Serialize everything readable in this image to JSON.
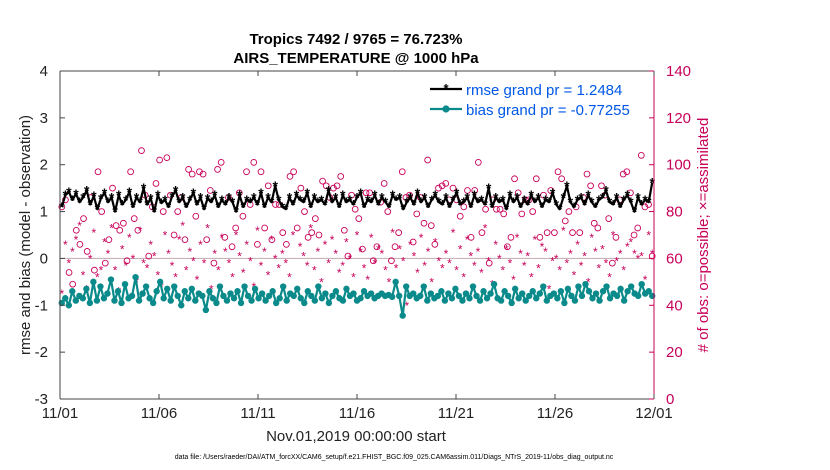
{
  "chart_data": {
    "type": "line",
    "title_line1": "Tropics 7492 / 9765 = 76.723%",
    "title_line2": "AIRS_TEMPERATURE @ 1000 hPa",
    "xlabel": "Nov.01,2019 00:00:00 start",
    "ylabel_left": "rmse and bias (model - observation)",
    "ylabel_right": "# of obs: o=possible; ×=assimilated",
    "footnote": "data file: /Users/raeder/DAI/ATM_forcXX/CAM6_setup/f.e21.FHIST_BGC.f09_025.CAM6assim.011/Diags_NTrS_2019-11/obs_diag_output.nc",
    "x_ticks": [
      "11/01",
      "11/06",
      "11/11",
      "11/16",
      "11/21",
      "11/26",
      "12/01"
    ],
    "x_range_days": [
      0,
      30
    ],
    "left_ticks": [
      "-3",
      "-2",
      "-1",
      "0",
      "1",
      "2",
      "3",
      "4"
    ],
    "ylim_left": [
      -3,
      4
    ],
    "right_ticks": [
      "0",
      "20",
      "40",
      "60",
      "80",
      "100",
      "120",
      "140"
    ],
    "ylim_right": [
      0,
      140
    ],
    "zero_line": 0,
    "colors": {
      "rmse": "#000000",
      "bias": "#0a8a8a",
      "obs": "#c8005a",
      "legend_text": "#0057e7",
      "zero_line": "#c8b4b4"
    },
    "series": [
      {
        "name": "rmse grand pr = 1.2484",
        "key": "rmse",
        "values": [
          1.1,
          1.35,
          1.42,
          1.25,
          1.38,
          1.2,
          1.3,
          1.45,
          1.15,
          1.33,
          1.05,
          1.28,
          1.4,
          1.2,
          1.3,
          1.0,
          1.35,
          1.15,
          1.25,
          1.42,
          1.1,
          1.3,
          1.2,
          1.5,
          1.15,
          1.28,
          1.0,
          1.35,
          1.18,
          1.25,
          1.1,
          1.32,
          1.45,
          1.2,
          1.3,
          1.1,
          1.25,
          1.4,
          1.15,
          1.3,
          1.05,
          1.28,
          1.2,
          1.35,
          1.1,
          1.25,
          1.15,
          1.3,
          1.2,
          1.0,
          1.35,
          1.1,
          1.25,
          1.2,
          1.3,
          1.15,
          1.4,
          1.1,
          1.3,
          1.2,
          1.55,
          1.25,
          1.1,
          1.05,
          1.3,
          1.15,
          1.35,
          1.25,
          1.2,
          1.4,
          1.1,
          1.3,
          1.2,
          1.25,
          1.15,
          1.45,
          1.2,
          1.3,
          1.1,
          1.35,
          1.2,
          1.25,
          1.15,
          1.3,
          1.4,
          1.1,
          1.25,
          1.2,
          1.35,
          1.15,
          1.3,
          1.2,
          1.1,
          1.35,
          1.25,
          1.3,
          1.05,
          1.2,
          1.3,
          1.15,
          1.4,
          1.2,
          1.3,
          1.1,
          1.25,
          1.35,
          1.2,
          1.15,
          1.3,
          1.1,
          1.25,
          1.4,
          1.15,
          1.2,
          1.3,
          1.1,
          1.35,
          1.2,
          1.25,
          1.15,
          1.5,
          1.1,
          1.3,
          1.2,
          1.25,
          1.05,
          1.35,
          1.2,
          1.3,
          1.1,
          1.25,
          1.15,
          1.35,
          1.2,
          1.3,
          1.1,
          1.25,
          1.2,
          1.4,
          1.15,
          1.05,
          1.3,
          1.55,
          1.2,
          1.1,
          1.25,
          1.3,
          1.15,
          1.35,
          1.2,
          1.1,
          1.25,
          1.3,
          1.45,
          1.2,
          1.15,
          1.3,
          1.1,
          1.25,
          1.35,
          1.2,
          1.0,
          1.3,
          1.15,
          1.25,
          1.2,
          1.62
        ]
      },
      {
        "name": "bias grand pr = -0.77255",
        "key": "bias",
        "values": [
          -0.95,
          -0.85,
          -1.0,
          -0.7,
          -0.9,
          -0.8,
          -0.85,
          -0.65,
          -0.95,
          -0.5,
          -0.9,
          -0.6,
          -0.85,
          -0.75,
          -0.45,
          -0.9,
          -0.7,
          -0.95,
          -0.55,
          -0.85,
          -0.8,
          -0.4,
          -0.9,
          -0.75,
          -0.6,
          -0.85,
          -0.95,
          -0.7,
          -0.5,
          -0.85,
          -0.65,
          -0.9,
          -0.6,
          -0.8,
          -1.0,
          -0.7,
          -0.85,
          -0.65,
          -0.9,
          -0.75,
          -0.8,
          -1.1,
          -0.7,
          -0.85,
          -0.95,
          -0.6,
          -0.8,
          -0.9,
          -0.75,
          -0.85,
          -0.7,
          -0.95,
          -0.6,
          -0.8,
          -0.9,
          -0.65,
          -0.85,
          -0.75,
          -0.9,
          -0.8,
          -0.7,
          -0.95,
          -0.85,
          -0.6,
          -0.9,
          -0.75,
          -0.8,
          -0.65,
          -0.85,
          -0.95,
          -0.7,
          -0.8,
          -0.9,
          -0.6,
          -0.85,
          -0.75,
          -0.95,
          -0.8,
          -0.7,
          -0.85,
          -0.9,
          -0.65,
          -0.8,
          -0.75,
          -0.9,
          -0.85,
          -0.7,
          -0.8,
          -0.75,
          -0.85,
          -0.8,
          -0.75,
          -0.8,
          -0.78,
          -0.82,
          -0.5,
          -0.8,
          -1.22,
          -0.6,
          -0.8,
          -0.75,
          -0.85,
          -0.8,
          -0.6,
          -0.9,
          -0.75,
          -0.85,
          -0.8,
          -0.7,
          -0.9,
          -0.75,
          -0.85,
          -0.65,
          -0.8,
          -0.9,
          -0.75,
          -0.85,
          -0.6,
          -0.8,
          -0.9,
          -0.7,
          -0.85,
          -0.75,
          -0.55,
          -0.85,
          -0.9,
          -0.7,
          -0.8,
          -0.95,
          -0.65,
          -0.85,
          -0.75,
          -0.9,
          -0.8,
          -0.7,
          -0.85,
          -0.75,
          -0.6,
          -0.9,
          -0.8,
          -0.75,
          -0.85,
          -0.7,
          -0.95,
          -0.65,
          -0.8,
          -0.9,
          -0.6,
          -0.8,
          -0.55,
          -0.7,
          -0.85,
          -0.75,
          -0.9,
          -0.7,
          -0.6,
          -0.85,
          -0.75,
          -0.8,
          -0.65,
          -0.9,
          -0.7,
          -0.6,
          -0.75,
          -0.8,
          -0.55,
          -0.75,
          -0.7,
          -0.8
        ]
      }
    ],
    "obs_possible": [
      82,
      85,
      54,
      49,
      72,
      66,
      77,
      63,
      86,
      55,
      97,
      80,
      58,
      68,
      90,
      74,
      72,
      75,
      59,
      97,
      77,
      72,
      106,
      87,
      61,
      82,
      92,
      102,
      80,
      103,
      87,
      70,
      80,
      86,
      68,
      98,
      96,
      78,
      97,
      96,
      68,
      89,
      58,
      98,
      101,
      69,
      86,
      65,
      73,
      88,
      78,
      97,
      83,
      101,
      66,
      97,
      73,
      91,
      68,
      83,
      83,
      71,
      66,
      95,
      97,
      73,
      90,
      80,
      69,
      71,
      77,
      70,
      93,
      91,
      86,
      90,
      91,
      95,
      72,
      61,
      87,
      81,
      77,
      64,
      88,
      88,
      59,
      65,
      84,
      92,
      80,
      59,
      65,
      71,
      97,
      86,
      87,
      67,
      79,
      86,
      75,
      102,
      74,
      66,
      90,
      91,
      92,
      85,
      90,
      85,
      78,
      82,
      89,
      69,
      89,
      101,
      71,
      81,
      58,
      85,
      81,
      81,
      79,
      65,
      69,
      94,
      88,
      79,
      85,
      85,
      80,
      94,
      69,
      87,
      71,
      89,
      71,
      97,
      94,
      76,
      80,
      71,
      82,
      71,
      86,
      96,
      91,
      75,
      73,
      91,
      87,
      77,
      58,
      69,
      85,
      96,
      97,
      88,
      70,
      73,
      104,
      82,
      83,
      61
    ],
    "obs_assimilated": [
      45,
      66,
      58,
      63,
      68,
      74,
      53,
      47,
      60,
      71,
      52,
      55,
      67,
      62,
      73,
      55,
      46,
      64,
      57,
      69,
      60,
      50,
      72,
      58,
      56,
      66,
      61,
      53,
      48,
      70,
      62,
      57,
      52,
      68,
      74,
      55,
      63,
      59,
      51,
      66,
      58,
      73,
      47,
      62,
      55,
      69,
      63,
      58,
      52,
      70,
      61,
      54,
      66,
      59,
      48,
      72,
      57,
      63,
      53,
      68,
      60,
      56,
      62,
      58,
      52,
      70,
      46,
      65,
      61,
      57,
      73,
      55,
      63,
      50,
      66,
      58,
      68,
      62,
      54,
      57,
      67,
      60,
      52,
      70,
      63,
      56,
      51,
      69,
      58,
      64,
      62,
      55,
      50,
      71,
      56,
      64,
      59,
      40,
      66,
      61,
      54,
      69,
      57,
      63,
      50,
      67,
      59,
      56,
      62,
      58,
      71,
      55,
      64,
      52,
      68,
      61,
      57,
      63,
      54,
      73,
      59,
      49,
      66,
      60,
      55,
      64,
      58,
      51,
      69,
      62,
      57,
      61,
      52,
      68,
      56,
      65,
      63,
      47,
      59,
      60,
      55,
      72,
      58,
      62,
      53,
      66,
      57,
      61,
      50,
      69,
      63,
      56,
      64,
      58,
      52,
      70,
      59,
      62,
      55,
      65,
      67,
      62,
      60,
      61,
      51,
      70,
      62
    ]
  },
  "legend": {
    "rmse_label": "rmse grand pr = 1.2484",
    "bias_label": "bias grand pr = -0.77255"
  }
}
